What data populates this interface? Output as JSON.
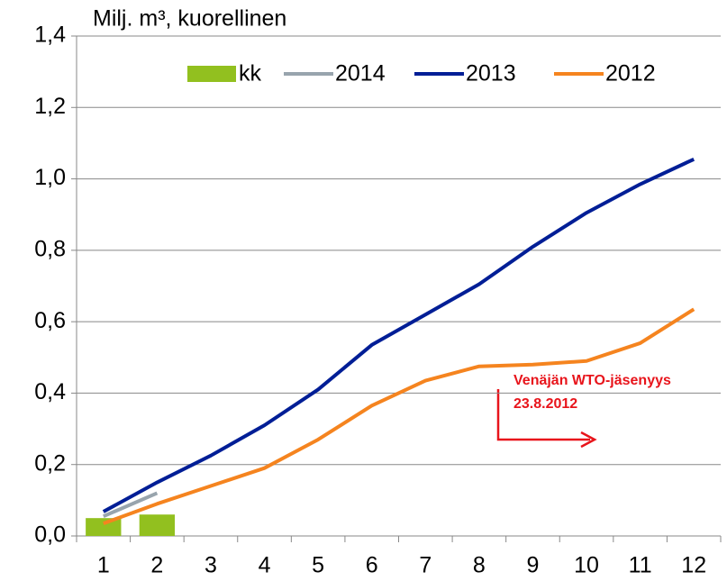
{
  "chart_data": {
    "type": "combo",
    "ylabel": "Milj. m³, kuorellinen",
    "categories": [
      "1",
      "2",
      "3",
      "4",
      "5",
      "6",
      "7",
      "8",
      "9",
      "10",
      "11",
      "12"
    ],
    "series": [
      {
        "name": "kk",
        "type": "bar",
        "color": "#92c01f",
        "values": [
          0.05,
          0.06,
          null,
          null,
          null,
          null,
          null,
          null,
          null,
          null,
          null,
          null
        ]
      },
      {
        "name": "2014",
        "type": "line",
        "color": "#98a4ad",
        "values": [
          0.055,
          0.12,
          null,
          null,
          null,
          null,
          null,
          null,
          null,
          null,
          null,
          null
        ]
      },
      {
        "name": "2013",
        "type": "line",
        "color": "#001e96",
        "values": [
          0.068,
          0.15,
          0.225,
          0.31,
          0.41,
          0.535,
          0.62,
          0.705,
          0.81,
          0.905,
          0.985,
          1.055
        ]
      },
      {
        "name": "2012",
        "type": "line",
        "color": "#f5841f",
        "values": [
          0.035,
          0.09,
          0.14,
          0.19,
          0.27,
          0.365,
          0.435,
          0.475,
          0.48,
          0.49,
          0.54,
          0.635
        ]
      }
    ],
    "annotations": [
      "Venäjän WTO-jäsenyys",
      "23.8.2012"
    ],
    "ylim": [
      0,
      1.4
    ],
    "yticks": [
      {
        "value": 0,
        "label": "0,0"
      },
      {
        "value": 0.2,
        "label": "0,2"
      },
      {
        "value": 0.4,
        "label": "0,4"
      },
      {
        "value": 0.6,
        "label": "0,6"
      },
      {
        "value": 0.8,
        "label": "0,8"
      },
      {
        "value": 1.0,
        "label": "1,0"
      },
      {
        "value": 1.2,
        "label": "1,2"
      },
      {
        "value": 1.4,
        "label": "1,4"
      }
    ],
    "grid": true,
    "legend": "top"
  }
}
